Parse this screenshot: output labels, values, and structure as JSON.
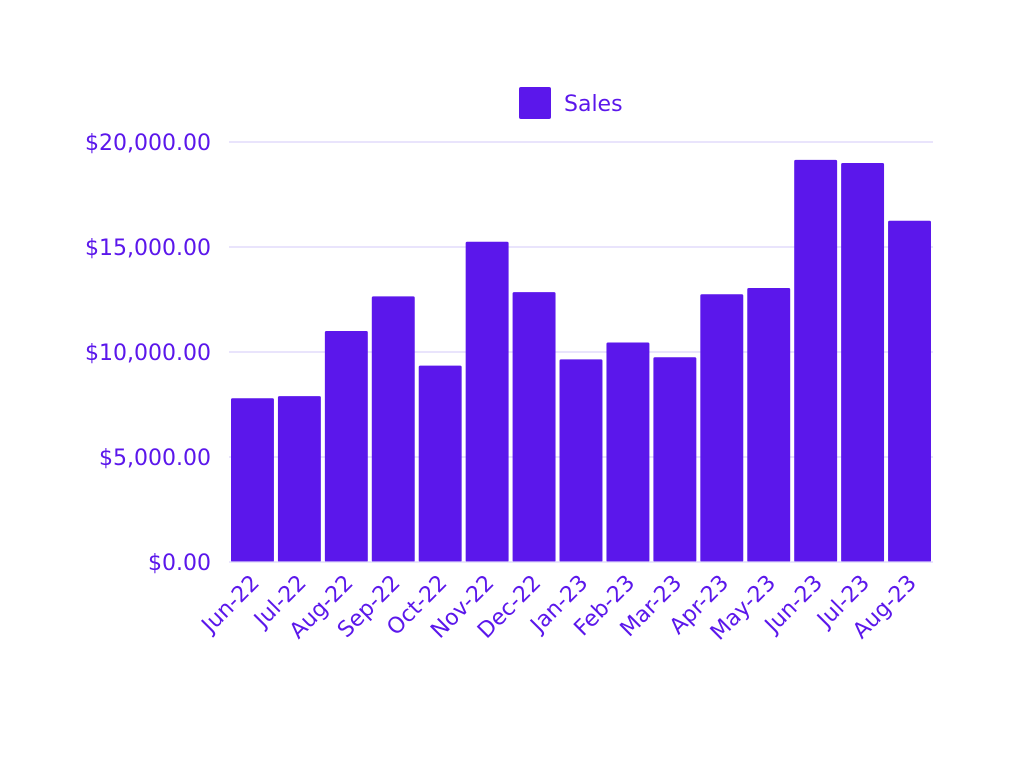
{
  "colors": {
    "bar": "#5b17eb",
    "text": "#5b17eb",
    "grid": "#dcd4fb",
    "background": "#ffffff"
  },
  "chart_data": {
    "type": "bar",
    "title": "",
    "xlabel": "",
    "ylabel": "",
    "categories": [
      "Jun-22",
      "Jul-22",
      "Aug-22",
      "Sep-22",
      "Oct-22",
      "Nov-22",
      "Dec-22",
      "Jan-23",
      "Feb-23",
      "Mar-23",
      "Apr-23",
      "May-23",
      "Jun-23",
      "Jul-23",
      "Aug-23"
    ],
    "series": [
      {
        "name": "Sales",
        "values": [
          7800,
          7900,
          11000,
          12650,
          9350,
          15250,
          12850,
          9650,
          10450,
          9750,
          12750,
          13050,
          19150,
          19000,
          16250
        ]
      }
    ],
    "ylim": [
      0,
      20000
    ],
    "yticks": [
      0,
      5000,
      10000,
      15000,
      20000
    ],
    "ytick_labels": [
      "$0.00",
      "$5,000.00",
      "$10,000.00",
      "$15,000.00",
      "$20,000.00"
    ],
    "grid": true,
    "legend": {
      "position": "top-center",
      "entries": [
        "Sales"
      ]
    }
  }
}
